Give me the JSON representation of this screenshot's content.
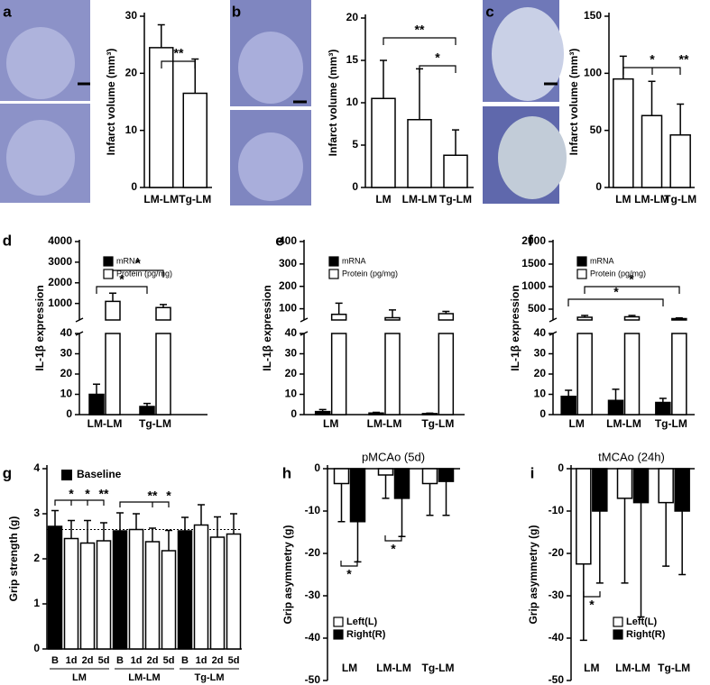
{
  "chart_data": [
    {
      "type": "bar",
      "label": "a",
      "ylabel": "Infarct volume (mm³)",
      "categories": [
        "LM-LM",
        "Tg-LM"
      ],
      "values": [
        24.5,
        16.5
      ],
      "errors": [
        4,
        6
      ],
      "color": "#ffffff",
      "ylim": [
        0,
        30
      ],
      "yticks": [
        0,
        10,
        20,
        30
      ],
      "annotations": [
        "**"
      ]
    },
    {
      "type": "bar",
      "label": "b",
      "ylabel": "Infarct volume (mm³)",
      "categories": [
        "LM",
        "LM-LM",
        "Tg-LM"
      ],
      "values": [
        10.5,
        8,
        3.8
      ],
      "errors": [
        4.5,
        6,
        3
      ],
      "color": "#ffffff",
      "ylim": [
        0,
        20
      ],
      "yticks": [
        0,
        5,
        10,
        15,
        20
      ],
      "annotations": [
        "**",
        "*"
      ]
    },
    {
      "type": "bar",
      "label": "c",
      "ylabel": "Infarct volume (mm³)",
      "categories": [
        "LM",
        "LM-LM",
        "Tg-LM"
      ],
      "values": [
        95,
        63,
        46
      ],
      "errors": [
        20,
        30,
        27
      ],
      "color": "#ffffff",
      "ylim": [
        0,
        150
      ],
      "yticks": [
        0,
        50,
        100,
        150
      ],
      "annotations": [
        "*",
        "**"
      ]
    },
    {
      "type": "broken-bar",
      "label": "d",
      "ylabel": "IL-1β expression",
      "categories": [
        "LM-LM",
        "Tg-LM"
      ],
      "series": [
        {
          "name": "mRNA",
          "color": "#000000",
          "values": [
            10,
            4
          ],
          "errors": [
            5,
            1.5
          ]
        },
        {
          "name": "Protein (pg/mg)",
          "color": "#ffffff",
          "values": [
            1100,
            800
          ],
          "errors": [
            400,
            150
          ]
        }
      ],
      "ylim": [
        0,
        4000
      ],
      "ybreak": [
        40,
        200
      ],
      "yticks": [
        0,
        10,
        20,
        30,
        40,
        1000,
        2000,
        3000,
        4000
      ],
      "annotations": [
        "*",
        "*"
      ]
    },
    {
      "type": "broken-bar",
      "label": "e",
      "ylabel": "IL-1β expression",
      "categories": [
        "LM",
        "LM-LM",
        "Tg-LM"
      ],
      "series": [
        {
          "name": "mRNA",
          "color": "#000000",
          "values": [
            1.5,
            0.8,
            0.5
          ],
          "errors": [
            1,
            0.3,
            0.2
          ]
        },
        {
          "name": "Protein (pg/mg)",
          "color": "#ffffff",
          "values": [
            75,
            60,
            78
          ],
          "errors": [
            50,
            35,
            10
          ]
        }
      ],
      "ylim": [
        0,
        400
      ],
      "ybreak": [
        40,
        50
      ],
      "yticks": [
        0,
        10,
        20,
        30,
        40,
        100,
        200,
        300,
        400
      ]
    },
    {
      "type": "broken-bar",
      "label": "f",
      "ylabel": "IL-1β expression",
      "categories": [
        "LM",
        "LM-LM",
        "Tg-LM"
      ],
      "series": [
        {
          "name": "mRNA",
          "color": "#000000",
          "values": [
            9,
            7,
            6
          ],
          "errors": [
            3,
            5.5,
            2
          ]
        },
        {
          "name": "Protein (pg/mg)",
          "color": "#ffffff",
          "values": [
            320,
            330,
            290
          ],
          "errors": [
            40,
            30,
            15
          ]
        }
      ],
      "ylim": [
        0,
        2000
      ],
      "ybreak": [
        40,
        260
      ],
      "yticks": [
        0,
        10,
        20,
        30,
        40,
        500,
        1000,
        1500,
        2000
      ],
      "annotations": [
        "*",
        "*"
      ]
    },
    {
      "type": "bar",
      "label": "g",
      "ylabel": "Grip strength (g)",
      "categories": [
        "B",
        "1d",
        "2d",
        "5d",
        "B",
        "1d",
        "2d",
        "5d",
        "B",
        "1d",
        "2d",
        "5d"
      ],
      "groups": [
        "LM",
        "LM-LM",
        "Tg-LM"
      ],
      "values": [
        2.72,
        2.45,
        2.35,
        2.4,
        2.62,
        2.65,
        2.38,
        2.18,
        2.62,
        2.75,
        2.48,
        2.55
      ],
      "errors": [
        0.35,
        0.4,
        0.5,
        0.4,
        0.4,
        0.35,
        0.3,
        0.45,
        0.3,
        0.45,
        0.45,
        0.45
      ],
      "colors": [
        "#000000",
        "#ffffff",
        "#ffffff",
        "#ffffff",
        "#000000",
        "#ffffff",
        "#ffffff",
        "#ffffff",
        "#000000",
        "#ffffff",
        "#ffffff",
        "#ffffff"
      ],
      "legend_label": "Baseline",
      "reference_line": 2.65,
      "ylim": [
        0,
        4
      ],
      "yticks": [
        0,
        1,
        2,
        3,
        4
      ],
      "annotations": [
        "*",
        "*",
        "**",
        "**",
        "*"
      ]
    },
    {
      "type": "bar",
      "label": "h",
      "title": "pMCAo (5d)",
      "ylabel": "Grip asymmetry (g)",
      "categories": [
        "LM",
        "LM-LM",
        "Tg-LM"
      ],
      "series": [
        {
          "name": "Left(L)",
          "color": "#ffffff",
          "values": [
            -3.5,
            -1.5,
            -3.5
          ],
          "errors": [
            9,
            5.5,
            7.5
          ]
        },
        {
          "name": "Right(R)",
          "color": "#000000",
          "values": [
            -12.5,
            -7,
            -3
          ],
          "errors": [
            9.5,
            9,
            8
          ]
        }
      ],
      "ylim": [
        -50,
        0
      ],
      "yticks": [
        0,
        -10,
        -20,
        -30,
        -40,
        -50
      ],
      "annotations": [
        "*",
        "*"
      ]
    },
    {
      "type": "bar",
      "label": "i",
      "title": "tMCAo (24h)",
      "ylabel": "Grip asymmetry (g)",
      "categories": [
        "LM",
        "LM-LM",
        "Tg-LM"
      ],
      "series": [
        {
          "name": "Left(L)",
          "color": "#ffffff",
          "values": [
            -22.5,
            -7,
            -8
          ],
          "errors": [
            18,
            20,
            15
          ]
        },
        {
          "name": "Right(R)",
          "color": "#000000",
          "values": [
            -10,
            -8,
            -10
          ],
          "errors": [
            17,
            27,
            15
          ]
        }
      ],
      "ylim": [
        -50,
        0
      ],
      "yticks": [
        0,
        -10,
        -20,
        -30,
        -40,
        -50
      ],
      "annotations": [
        "*"
      ]
    }
  ]
}
